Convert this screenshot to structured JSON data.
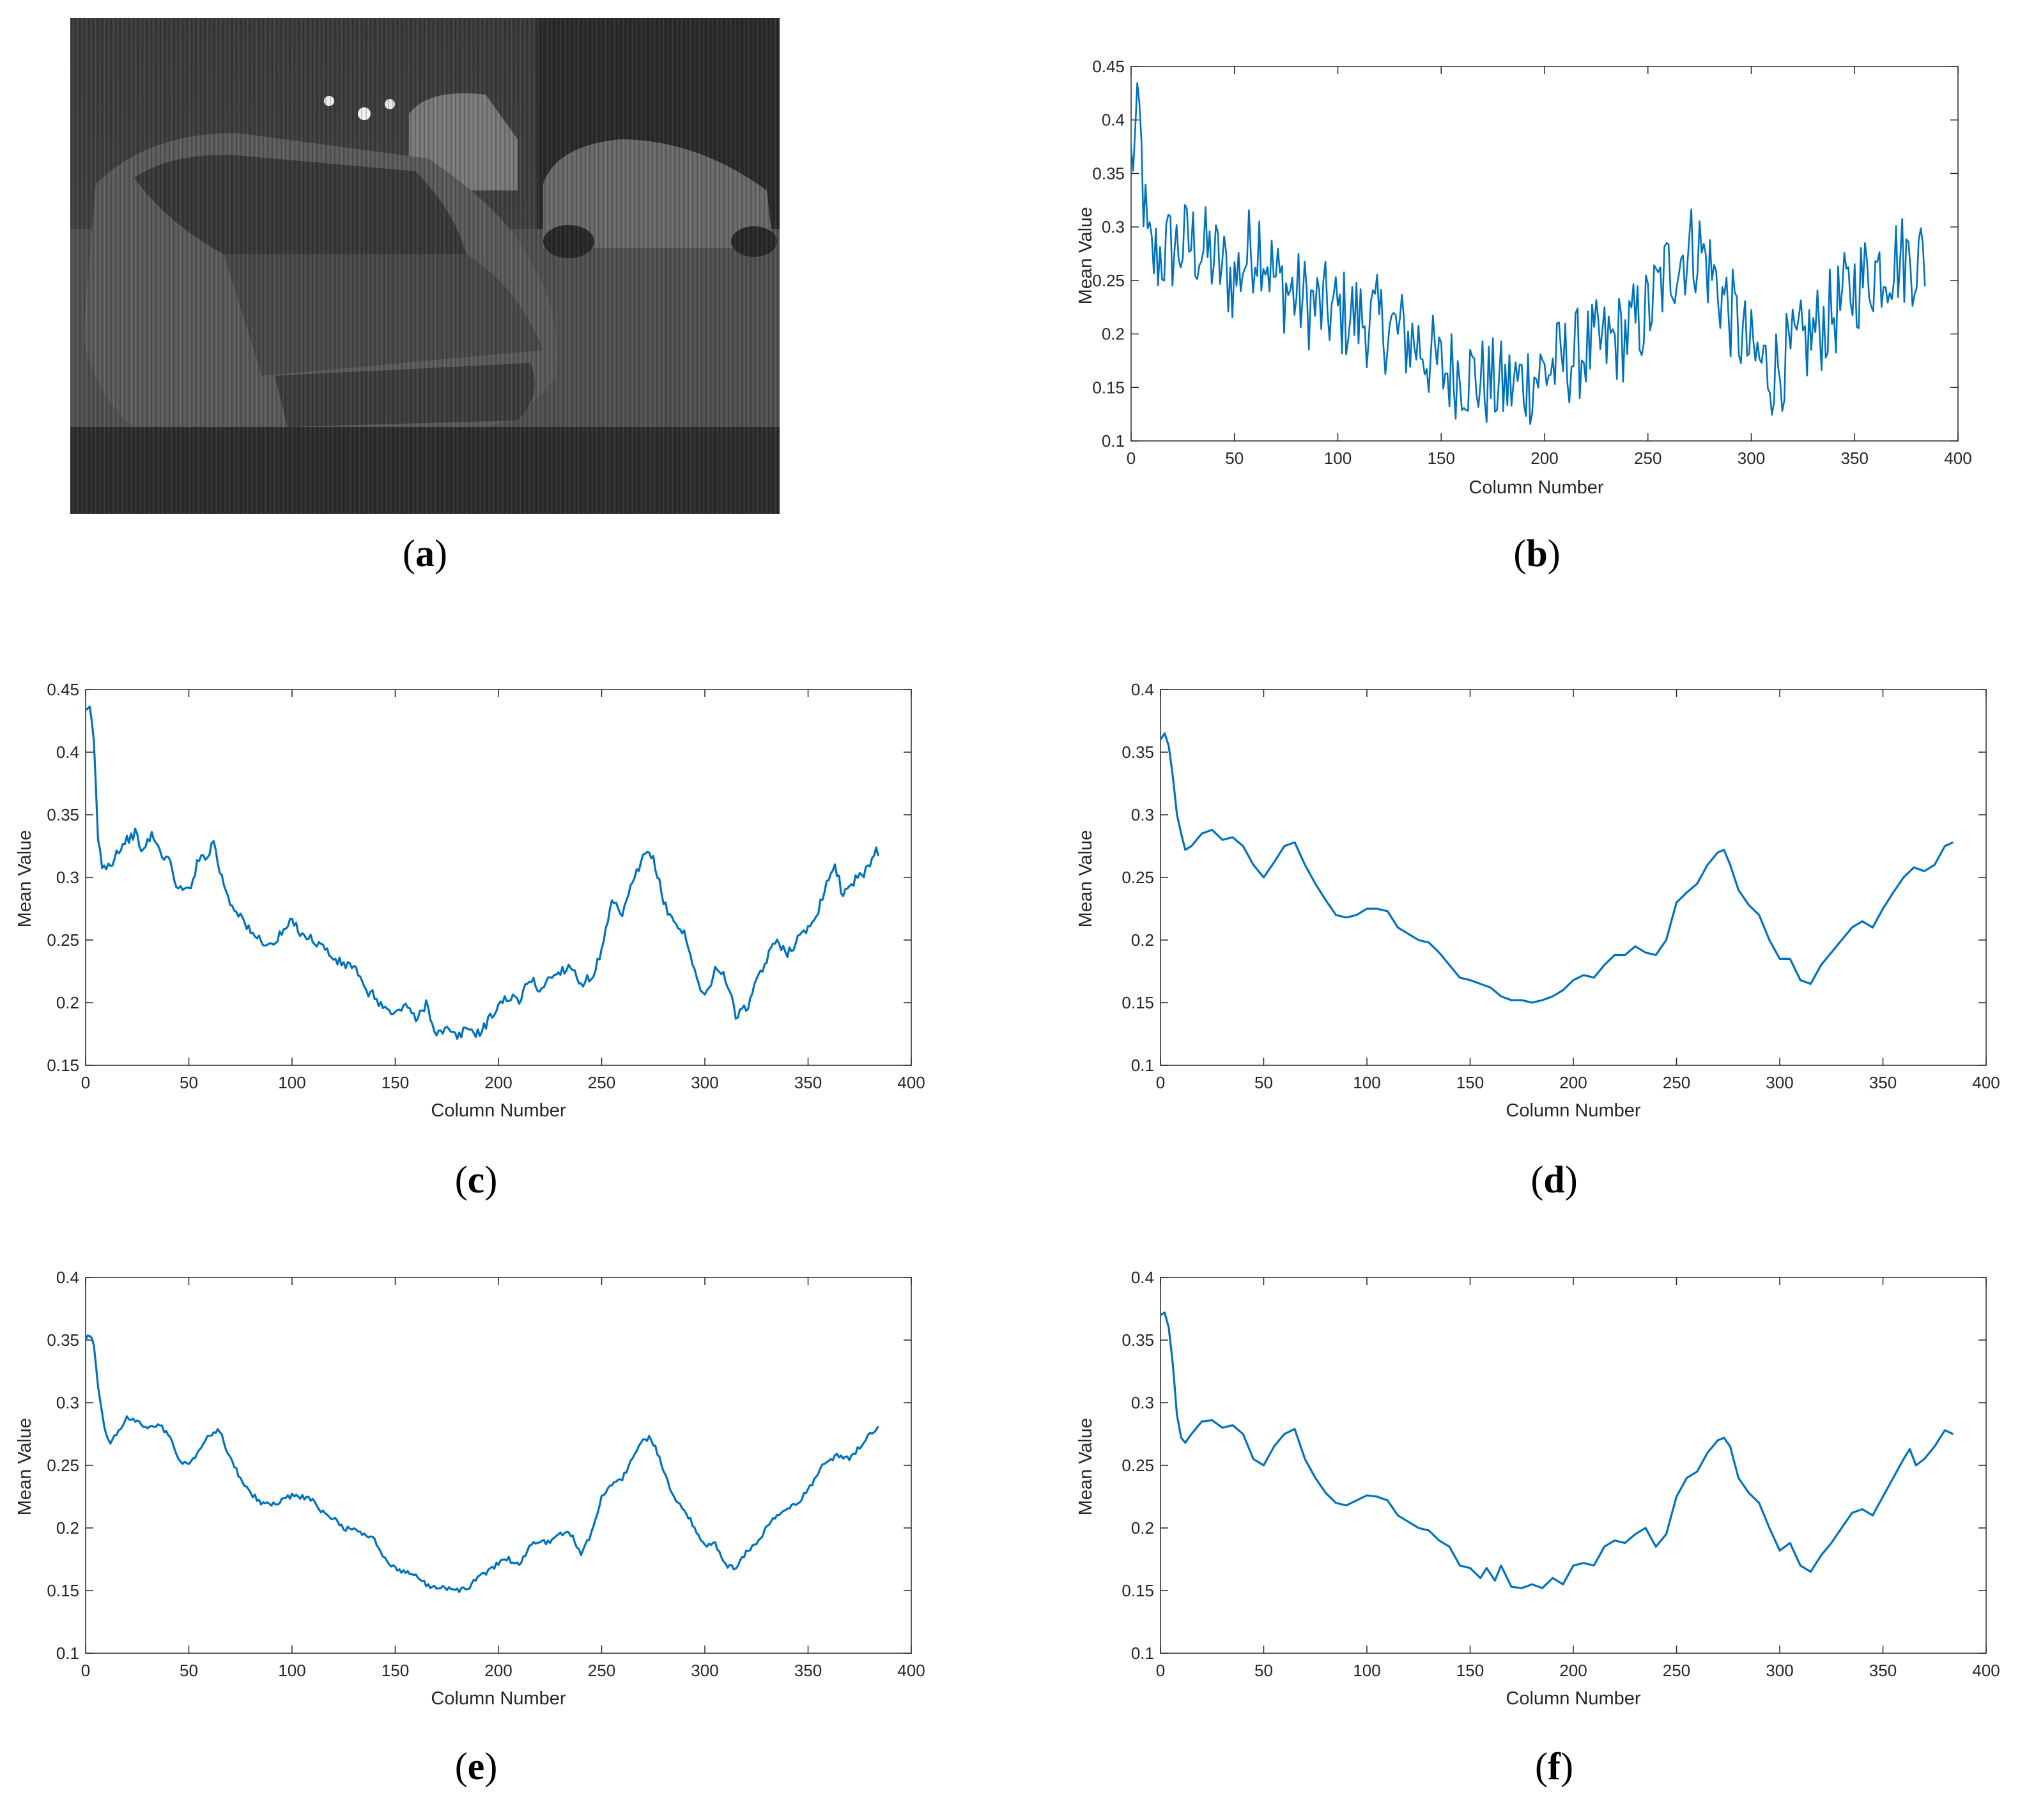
{
  "captions": {
    "a": "a",
    "b": "b",
    "c": "c",
    "d": "d",
    "e": "e",
    "f": "f"
  },
  "colors": {
    "line": "#0072BD",
    "axis": "#262626",
    "background": "#ffffff"
  },
  "image_panel": {
    "description_icon": "infrared-car-image",
    "tone": "grayscale"
  },
  "chart_data": [
    {
      "panel": "b",
      "type": "line",
      "xlabel": "Column Number",
      "ylabel": "Mean Value",
      "xlim": [
        0,
        400
      ],
      "ylim": [
        0.1,
        0.45
      ],
      "xticks": [
        0,
        50,
        100,
        150,
        200,
        250,
        300,
        350,
        400
      ],
      "yticks": [
        0.1,
        0.15,
        0.2,
        0.25,
        0.3,
        0.35,
        0.4,
        0.45
      ],
      "noise": 0.045,
      "x": [
        0,
        2,
        4,
        6,
        8,
        10,
        20,
        30,
        40,
        50,
        55,
        62,
        70,
        80,
        90,
        100,
        110,
        120,
        130,
        140,
        150,
        160,
        170,
        180,
        190,
        200,
        210,
        220,
        230,
        240,
        250,
        260,
        270,
        275,
        280,
        290,
        300,
        310,
        320,
        330,
        340,
        350,
        360,
        370,
        380,
        384
      ],
      "y": [
        0.36,
        0.38,
        0.4,
        0.33,
        0.28,
        0.27,
        0.28,
        0.285,
        0.27,
        0.25,
        0.27,
        0.29,
        0.25,
        0.235,
        0.225,
        0.22,
        0.215,
        0.21,
        0.2,
        0.19,
        0.165,
        0.165,
        0.155,
        0.15,
        0.155,
        0.165,
        0.175,
        0.185,
        0.19,
        0.2,
        0.22,
        0.26,
        0.28,
        0.28,
        0.26,
        0.22,
        0.18,
        0.165,
        0.18,
        0.2,
        0.22,
        0.245,
        0.26,
        0.27,
        0.27,
        0.27
      ]
    },
    {
      "panel": "c",
      "type": "line",
      "xlabel": "Column Number",
      "ylabel": "Mean Value",
      "xlim": [
        0,
        400
      ],
      "ylim": [
        0.15,
        0.45
      ],
      "xticks": [
        0,
        50,
        100,
        150,
        200,
        250,
        300,
        350,
        400
      ],
      "yticks": [
        0.15,
        0.2,
        0.25,
        0.3,
        0.35,
        0.4,
        0.45
      ],
      "noise": 0.004,
      "x": [
        0,
        2,
        4,
        6,
        8,
        12,
        15,
        20,
        24,
        28,
        32,
        36,
        40,
        45,
        50,
        55,
        60,
        62,
        65,
        70,
        75,
        80,
        85,
        90,
        95,
        100,
        105,
        110,
        115,
        120,
        125,
        130,
        135,
        140,
        145,
        150,
        155,
        160,
        165,
        170,
        175,
        180,
        185,
        190,
        195,
        200,
        205,
        210,
        215,
        220,
        225,
        230,
        235,
        240,
        245,
        250,
        255,
        260,
        265,
        270,
        273,
        276,
        280,
        285,
        290,
        295,
        300,
        303,
        306,
        310,
        315,
        320,
        325,
        330,
        335,
        340,
        345,
        350,
        355,
        360,
        363,
        367,
        370,
        375,
        380,
        383,
        384
      ],
      "y": [
        0.43,
        0.435,
        0.41,
        0.33,
        0.31,
        0.31,
        0.32,
        0.33,
        0.335,
        0.32,
        0.335,
        0.32,
        0.315,
        0.29,
        0.29,
        0.315,
        0.32,
        0.33,
        0.305,
        0.28,
        0.27,
        0.255,
        0.25,
        0.245,
        0.255,
        0.265,
        0.255,
        0.25,
        0.245,
        0.235,
        0.23,
        0.23,
        0.21,
        0.205,
        0.195,
        0.19,
        0.2,
        0.185,
        0.2,
        0.175,
        0.178,
        0.172,
        0.18,
        0.175,
        0.185,
        0.198,
        0.205,
        0.2,
        0.22,
        0.21,
        0.22,
        0.225,
        0.23,
        0.215,
        0.22,
        0.24,
        0.28,
        0.27,
        0.295,
        0.315,
        0.32,
        0.31,
        0.28,
        0.265,
        0.255,
        0.225,
        0.205,
        0.215,
        0.23,
        0.22,
        0.19,
        0.195,
        0.215,
        0.235,
        0.25,
        0.24,
        0.25,
        0.26,
        0.275,
        0.3,
        0.31,
        0.285,
        0.295,
        0.3,
        0.31,
        0.325,
        0.315
      ]
    },
    {
      "panel": "d",
      "type": "line",
      "xlabel": "Column Number",
      "ylabel": "Mean Value",
      "xlim": [
        0,
        400
      ],
      "ylim": [
        0.1,
        0.4
      ],
      "xticks": [
        0,
        50,
        100,
        150,
        200,
        250,
        300,
        350,
        400
      ],
      "yticks": [
        0.1,
        0.15,
        0.2,
        0.25,
        0.3,
        0.35,
        0.4
      ],
      "noise": 0,
      "x": [
        0,
        2,
        4,
        6,
        8,
        10,
        12,
        15,
        20,
        25,
        30,
        35,
        40,
        45,
        50,
        55,
        60,
        65,
        70,
        75,
        80,
        85,
        90,
        95,
        100,
        105,
        110,
        115,
        120,
        125,
        130,
        135,
        140,
        145,
        150,
        155,
        160,
        165,
        170,
        175,
        180,
        185,
        190,
        195,
        200,
        205,
        210,
        215,
        220,
        225,
        230,
        235,
        240,
        245,
        250,
        255,
        260,
        265,
        270,
        273,
        276,
        280,
        285,
        290,
        295,
        300,
        305,
        310,
        315,
        320,
        325,
        330,
        335,
        340,
        345,
        350,
        355,
        360,
        365,
        370,
        375,
        380,
        384
      ],
      "y": [
        0.36,
        0.365,
        0.355,
        0.33,
        0.3,
        0.285,
        0.272,
        0.275,
        0.285,
        0.288,
        0.28,
        0.282,
        0.275,
        0.26,
        0.25,
        0.262,
        0.275,
        0.278,
        0.26,
        0.245,
        0.232,
        0.22,
        0.218,
        0.22,
        0.225,
        0.225,
        0.223,
        0.21,
        0.205,
        0.2,
        0.198,
        0.19,
        0.18,
        0.17,
        0.168,
        0.165,
        0.162,
        0.155,
        0.152,
        0.152,
        0.15,
        0.152,
        0.155,
        0.16,
        0.168,
        0.172,
        0.17,
        0.18,
        0.188,
        0.188,
        0.195,
        0.19,
        0.188,
        0.2,
        0.23,
        0.238,
        0.245,
        0.26,
        0.27,
        0.272,
        0.26,
        0.24,
        0.228,
        0.22,
        0.2,
        0.185,
        0.185,
        0.168,
        0.165,
        0.18,
        0.19,
        0.2,
        0.21,
        0.215,
        0.21,
        0.225,
        0.238,
        0.25,
        0.258,
        0.255,
        0.26,
        0.275,
        0.278
      ]
    },
    {
      "panel": "e",
      "type": "line",
      "xlabel": "Column Number",
      "ylabel": "Mean Value",
      "xlim": [
        0,
        400
      ],
      "ylim": [
        0.1,
        0.4
      ],
      "xticks": [
        0,
        50,
        100,
        150,
        200,
        250,
        300,
        350,
        400
      ],
      "yticks": [
        0.1,
        0.15,
        0.2,
        0.25,
        0.3,
        0.35,
        0.4
      ],
      "noise": 0.002,
      "x": [
        0,
        2,
        4,
        6,
        8,
        10,
        12,
        15,
        20,
        25,
        30,
        35,
        40,
        45,
        50,
        55,
        60,
        65,
        70,
        75,
        80,
        85,
        90,
        95,
        100,
        105,
        110,
        115,
        120,
        125,
        130,
        135,
        140,
        145,
        150,
        155,
        160,
        165,
        170,
        175,
        180,
        185,
        190,
        195,
        200,
        205,
        210,
        215,
        220,
        225,
        230,
        235,
        240,
        245,
        250,
        255,
        260,
        265,
        270,
        273,
        276,
        280,
        285,
        290,
        295,
        300,
        305,
        310,
        315,
        320,
        325,
        330,
        335,
        340,
        345,
        350,
        355,
        360,
        365,
        370,
        375,
        380,
        384
      ],
      "y": [
        0.35,
        0.355,
        0.345,
        0.315,
        0.29,
        0.275,
        0.268,
        0.275,
        0.288,
        0.285,
        0.28,
        0.283,
        0.275,
        0.255,
        0.25,
        0.262,
        0.275,
        0.278,
        0.255,
        0.24,
        0.228,
        0.22,
        0.218,
        0.222,
        0.226,
        0.225,
        0.222,
        0.212,
        0.208,
        0.2,
        0.198,
        0.196,
        0.19,
        0.175,
        0.168,
        0.165,
        0.162,
        0.155,
        0.152,
        0.152,
        0.15,
        0.152,
        0.16,
        0.165,
        0.172,
        0.175,
        0.17,
        0.185,
        0.19,
        0.188,
        0.195,
        0.195,
        0.18,
        0.195,
        0.225,
        0.235,
        0.24,
        0.255,
        0.27,
        0.272,
        0.265,
        0.245,
        0.225,
        0.215,
        0.2,
        0.185,
        0.188,
        0.17,
        0.168,
        0.18,
        0.188,
        0.2,
        0.21,
        0.215,
        0.22,
        0.23,
        0.245,
        0.255,
        0.258,
        0.255,
        0.265,
        0.275,
        0.28
      ]
    },
    {
      "panel": "f",
      "type": "line",
      "xlabel": "Column Number",
      "ylabel": "Mean Value",
      "xlim": [
        0,
        400
      ],
      "ylim": [
        0.1,
        0.4
      ],
      "xticks": [
        0,
        50,
        100,
        150,
        200,
        250,
        300,
        350,
        400
      ],
      "yticks": [
        0.1,
        0.15,
        0.2,
        0.25,
        0.3,
        0.35,
        0.4
      ],
      "noise": 0,
      "x": [
        0,
        2,
        4,
        6,
        8,
        10,
        12,
        15,
        20,
        25,
        30,
        35,
        40,
        45,
        50,
        55,
        60,
        65,
        70,
        75,
        80,
        85,
        90,
        95,
        100,
        105,
        110,
        115,
        120,
        125,
        130,
        135,
        140,
        145,
        150,
        155,
        158,
        162,
        165,
        170,
        175,
        180,
        185,
        190,
        195,
        200,
        205,
        210,
        215,
        220,
        225,
        230,
        235,
        240,
        245,
        250,
        255,
        260,
        265,
        270,
        273,
        276,
        280,
        285,
        290,
        295,
        300,
        305,
        310,
        315,
        320,
        325,
        330,
        335,
        340,
        345,
        350,
        355,
        360,
        363,
        366,
        370,
        375,
        380,
        384
      ],
      "y": [
        0.37,
        0.372,
        0.36,
        0.33,
        0.29,
        0.272,
        0.268,
        0.275,
        0.285,
        0.286,
        0.28,
        0.282,
        0.275,
        0.255,
        0.25,
        0.265,
        0.275,
        0.279,
        0.255,
        0.24,
        0.228,
        0.22,
        0.218,
        0.222,
        0.226,
        0.225,
        0.222,
        0.21,
        0.205,
        0.2,
        0.198,
        0.19,
        0.185,
        0.17,
        0.168,
        0.16,
        0.168,
        0.158,
        0.17,
        0.153,
        0.152,
        0.155,
        0.152,
        0.16,
        0.155,
        0.17,
        0.172,
        0.17,
        0.185,
        0.19,
        0.188,
        0.195,
        0.2,
        0.185,
        0.195,
        0.225,
        0.24,
        0.245,
        0.26,
        0.27,
        0.272,
        0.265,
        0.24,
        0.228,
        0.22,
        0.2,
        0.182,
        0.188,
        0.17,
        0.165,
        0.178,
        0.188,
        0.2,
        0.212,
        0.215,
        0.21,
        0.225,
        0.24,
        0.255,
        0.263,
        0.25,
        0.255,
        0.265,
        0.278,
        0.275
      ]
    }
  ]
}
